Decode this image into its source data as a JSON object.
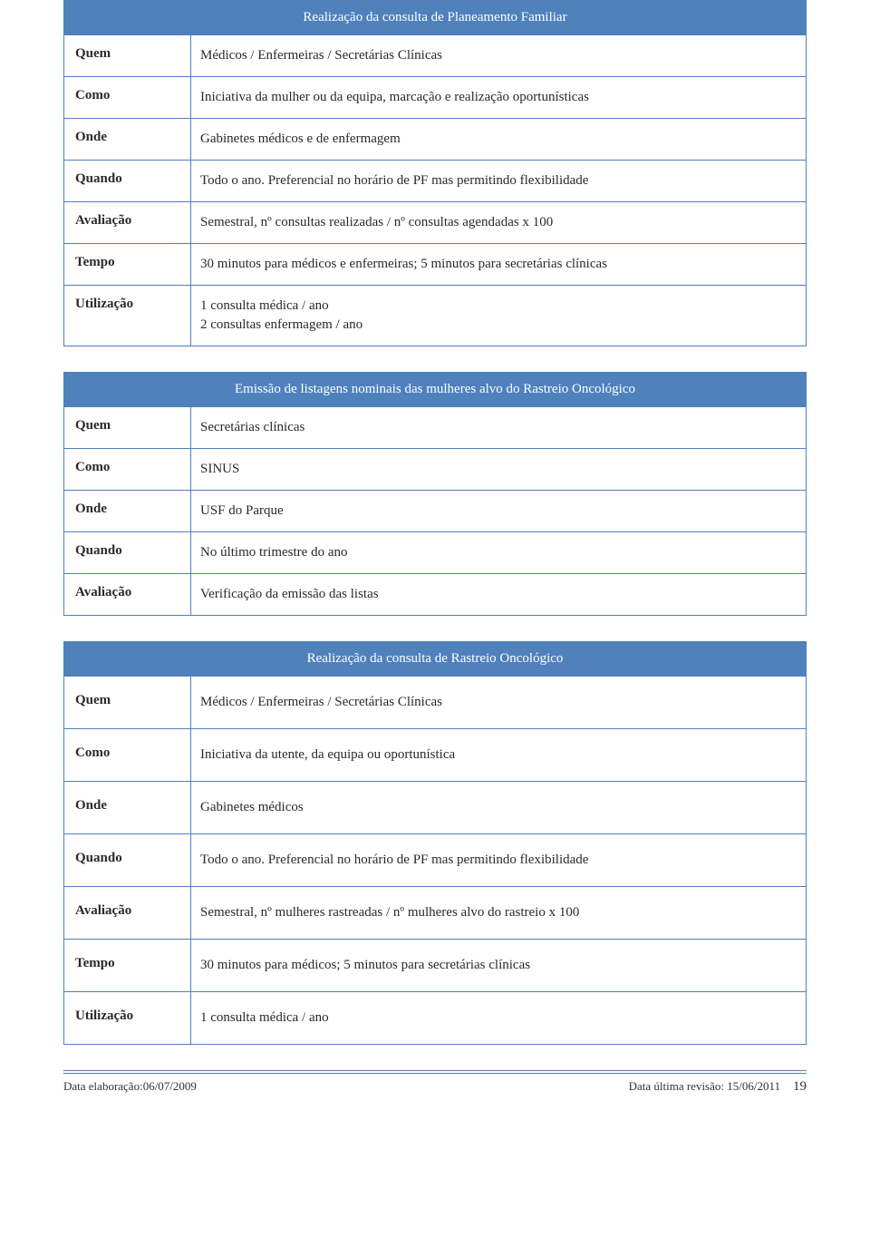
{
  "colors": {
    "accent": "#4f81bd",
    "text": "#2a2a2a",
    "header_text": "#ffffff",
    "footer_rule": "#5b7ba8"
  },
  "tables": [
    {
      "title": "Realização da consulta de Planeamento Familiar",
      "tall": false,
      "rows": [
        {
          "label": "Quem",
          "value": "Médicos / Enfermeiras / Secretárias Clínicas"
        },
        {
          "label": "Como",
          "value": "Iniciativa da mulher ou da equipa, marcação e realização oportunísticas"
        },
        {
          "label": "Onde",
          "value": "Gabinetes médicos e de enfermagem"
        },
        {
          "label": "Quando",
          "value": "Todo o ano. Preferencial no horário de PF mas permitindo flexibilidade"
        },
        {
          "label": "Avaliação",
          "value": "Semestral, nº consultas realizadas / nº consultas agendadas x 100"
        },
        {
          "label": "Tempo",
          "value": "30 minutos para médicos e enfermeiras; 5 minutos para secretárias clínicas"
        },
        {
          "label": "Utilização",
          "value": "1 consulta médica / ano\n2 consultas enfermagem / ano"
        }
      ]
    },
    {
      "title": "Emissão de listagens nominais das mulheres alvo do Rastreio Oncológico",
      "tall": false,
      "rows": [
        {
          "label": "Quem",
          "value": "Secretárias clínicas"
        },
        {
          "label": "Como",
          "value": "SINUS"
        },
        {
          "label": "Onde",
          "value": "USF do Parque"
        },
        {
          "label": "Quando",
          "value": "No último trimestre do ano"
        },
        {
          "label": "Avaliação",
          "value": "Verificação da emissão das listas"
        }
      ]
    },
    {
      "title": "Realização da consulta de Rastreio Oncológico",
      "tall": true,
      "rows": [
        {
          "label": "Quem",
          "value": "Médicos / Enfermeiras / Secretárias Clínicas"
        },
        {
          "label": "Como",
          "value": "Iniciativa da utente, da equipa ou oportunística"
        },
        {
          "label": "Onde",
          "value": "Gabinetes médicos"
        },
        {
          "label": "Quando",
          "value": "Todo o ano. Preferencial no horário de PF mas permitindo flexibilidade"
        },
        {
          "label": "Avaliação",
          "value": "Semestral, nº mulheres rastreadas / nº mulheres alvo do rastreio x 100"
        },
        {
          "label": "Tempo",
          "value": "30 minutos para médicos; 5 minutos para secretárias clínicas"
        },
        {
          "label": "Utilização",
          "value": "1 consulta médica / ano"
        }
      ]
    }
  ],
  "footer": {
    "left": "Data elaboração:06/07/2009",
    "right": "Data última revisão: 15/06/2011",
    "page": "19"
  }
}
